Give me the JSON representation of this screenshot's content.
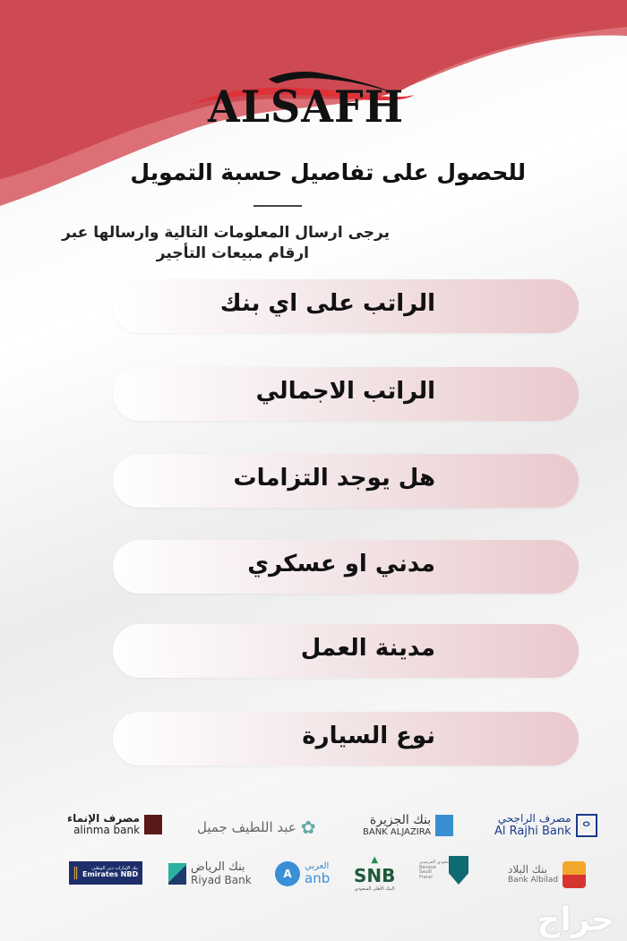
{
  "brand": {
    "name": "ALSAFH",
    "accent": "#cf4a52"
  },
  "header": {
    "title": "للحصول على تفاصيل حسبة التمويل",
    "subtitle_line1": "يرجى ارسال المعلومات التالية وارسالها عبر",
    "subtitle_line2": "ارقام مبيعات التأجير"
  },
  "fields": [
    {
      "label": "الراتب على اي بنك"
    },
    {
      "label": "الراتب الاجمالي"
    },
    {
      "label": "هل يوجد التزامات"
    },
    {
      "label": "مدني او عسكري"
    },
    {
      "label": "مدينة العمل"
    },
    {
      "label": "نوع السيارة"
    }
  ],
  "banks": [
    {
      "ar": "مصرف الإنماء",
      "en": "alinma bank"
    },
    {
      "ar": "عبد اللطيف جميل",
      "en": ""
    },
    {
      "ar": "بنك الجزيرة",
      "en": "BANK ALJAZIRA"
    },
    {
      "ar": "مصرف الراجحي",
      "en": "Al Rajhi Bank"
    },
    {
      "ar": "بنك الإمارات دبي الوطني",
      "en": "Emirates NBD"
    },
    {
      "ar": "بنك الرياض",
      "en": "Riyad Bank"
    },
    {
      "ar": "العربي",
      "en": "anb"
    },
    {
      "ar": "البنك الأهلي السعودي",
      "en": "SNB"
    },
    {
      "ar": "البنك السعودي الفرنسي",
      "en": "Banque Saudi Fransi"
    },
    {
      "ar": "بنك البلاد",
      "en": "Bank Albilad"
    }
  ],
  "watermark": "حراج"
}
